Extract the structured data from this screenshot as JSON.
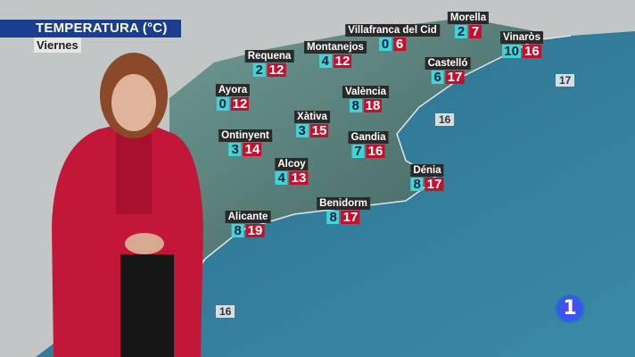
{
  "header": {
    "title": "TEMPERATURA (°C)",
    "day": "Viernes"
  },
  "colors": {
    "title_bg": "#1b3d8f",
    "min_bg": "#40d3da",
    "max_bg": "#c4102c",
    "sea": "#2f7f9c",
    "land": "#bfc3c3"
  },
  "cities": [
    {
      "name": "Villafranca del Cid",
      "min": "0",
      "max": "6"
    },
    {
      "name": "Morella",
      "min": "2",
      "max": "7"
    },
    {
      "name": "Vinaròs",
      "min": "10",
      "max": "16"
    },
    {
      "name": "Montanejos",
      "min": "4",
      "max": "12"
    },
    {
      "name": "Requena",
      "min": "2",
      "max": "12"
    },
    {
      "name": "Castelló",
      "min": "6",
      "max": "17"
    },
    {
      "name": "Ayora",
      "min": "0",
      "max": "12"
    },
    {
      "name": "València",
      "min": "8",
      "max": "18"
    },
    {
      "name": "Xàtiva",
      "min": "3",
      "max": "15"
    },
    {
      "name": "Ontinyent",
      "min": "3",
      "max": "14"
    },
    {
      "name": "Gandia",
      "min": "7",
      "max": "16"
    },
    {
      "name": "Alcoy",
      "min": "4",
      "max": "13"
    },
    {
      "name": "Dénia",
      "min": "8",
      "max": "17"
    },
    {
      "name": "Benidorm",
      "min": "8",
      "max": "17"
    },
    {
      "name": "Alicante",
      "min": "8",
      "max": "19"
    }
  ],
  "sea_temps": [
    "17",
    "16",
    "16"
  ],
  "logo": {
    "text": "1"
  }
}
